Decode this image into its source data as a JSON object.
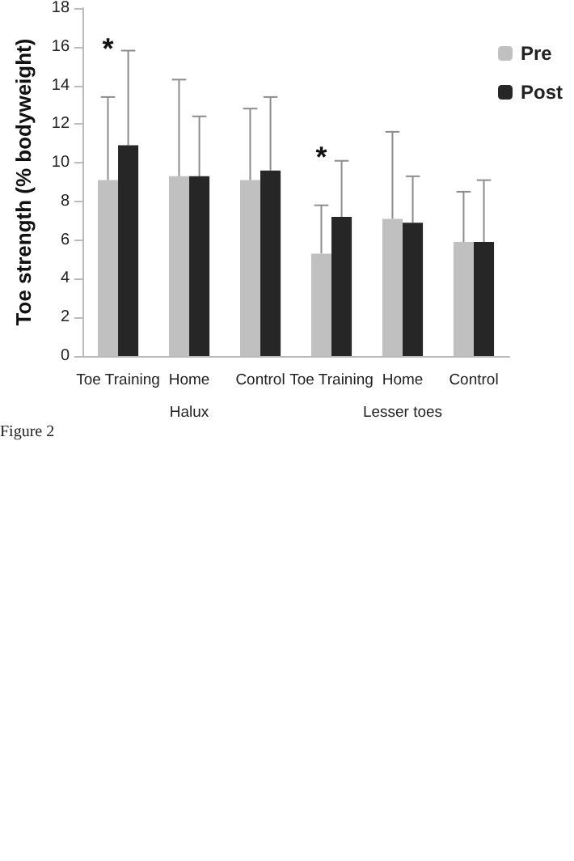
{
  "chart_data": {
    "type": "bar",
    "ylabel": "Toe strength (% bodyweight)",
    "categories": [
      "Toe Training",
      "Home",
      "Control",
      "Toe Training",
      "Home",
      "Control"
    ],
    "series": [
      {
        "name": "Pre",
        "color": "#c0c0c0",
        "values": [
          9.1,
          9.3,
          9.1,
          5.3,
          7.1,
          5.9
        ],
        "errors": [
          4.3,
          5.0,
          3.7,
          2.5,
          4.5,
          2.6
        ]
      },
      {
        "name": "Post",
        "color": "#262626",
        "values": [
          10.9,
          9.3,
          9.6,
          7.2,
          6.9,
          5.9
        ],
        "errors": [
          4.9,
          3.1,
          3.8,
          2.9,
          2.4,
          3.2
        ]
      }
    ],
    "ylim": [
      0,
      18
    ],
    "yticks": [
      0,
      2,
      4,
      6,
      8,
      10,
      12,
      14,
      16,
      18
    ],
    "grid": false,
    "legend": "top right",
    "annotations": [
      "Halux",
      "Lesser toes",
      "*",
      "*",
      "Figure 2"
    ]
  }
}
